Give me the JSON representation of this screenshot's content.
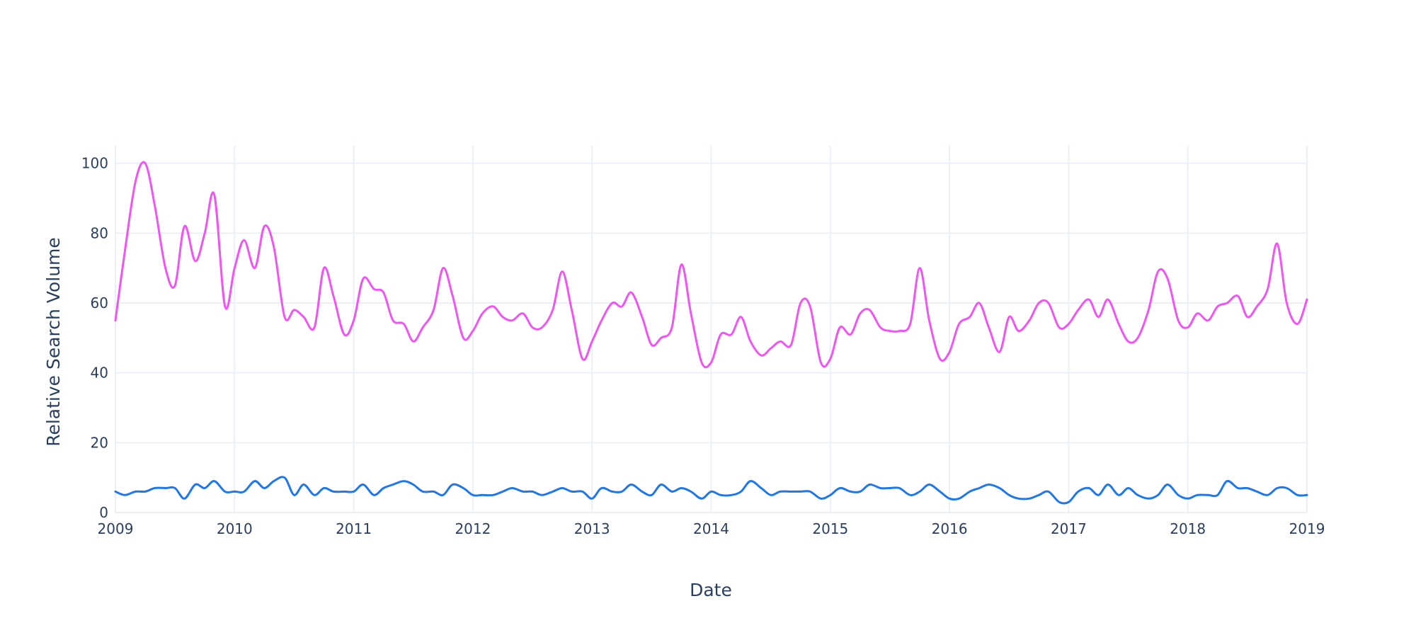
{
  "chart_data": {
    "type": "line",
    "title": "",
    "xlabel": "Date",
    "ylabel": "Relative Search Volume",
    "xlim": [
      2009,
      2019
    ],
    "ylim": [
      0,
      105
    ],
    "x_ticks": [
      "2009",
      "2010",
      "2011",
      "2012",
      "2013",
      "2014",
      "2015",
      "2016",
      "2017",
      "2018",
      "2019"
    ],
    "y_ticks": [
      0,
      20,
      40,
      60,
      80,
      100
    ],
    "grid": true,
    "series": [
      {
        "color": "#ef55f1",
        "x": [
          2009.0,
          2009.08,
          2009.17,
          2009.25,
          2009.33,
          2009.42,
          2009.5,
          2009.58,
          2009.67,
          2009.75,
          2009.83,
          2009.92,
          2010.0,
          2010.08,
          2010.17,
          2010.25,
          2010.33,
          2010.42,
          2010.5,
          2010.58,
          2010.67,
          2010.75,
          2010.83,
          2010.92,
          2011.0,
          2011.08,
          2011.17,
          2011.25,
          2011.33,
          2011.42,
          2011.5,
          2011.58,
          2011.67,
          2011.75,
          2011.83,
          2011.92,
          2012.0,
          2012.08,
          2012.17,
          2012.25,
          2012.33,
          2012.42,
          2012.5,
          2012.58,
          2012.67,
          2012.75,
          2012.83,
          2012.92,
          2013.0,
          2013.08,
          2013.17,
          2013.25,
          2013.33,
          2013.42,
          2013.5,
          2013.58,
          2013.67,
          2013.75,
          2013.83,
          2013.92,
          2014.0,
          2014.08,
          2014.17,
          2014.25,
          2014.33,
          2014.42,
          2014.5,
          2014.58,
          2014.67,
          2014.75,
          2014.83,
          2014.92,
          2015.0,
          2015.08,
          2015.17,
          2015.25,
          2015.33,
          2015.42,
          2015.5,
          2015.58,
          2015.67,
          2015.75,
          2015.83,
          2015.92,
          2016.0,
          2016.08,
          2016.17,
          2016.25,
          2016.33,
          2016.42,
          2016.5,
          2016.58,
          2016.67,
          2016.75,
          2016.83,
          2016.92,
          2017.0,
          2017.08,
          2017.17,
          2017.25,
          2017.33,
          2017.42,
          2017.5,
          2017.58,
          2017.67,
          2017.75,
          2017.83,
          2017.92,
          2018.0,
          2018.08,
          2018.17,
          2018.25,
          2018.33,
          2018.42,
          2018.5,
          2018.58,
          2018.67,
          2018.75,
          2018.83,
          2018.92,
          2019.0
        ],
        "y": [
          55,
          75,
          95,
          100,
          88,
          70,
          65,
          82,
          72,
          80,
          91,
          59,
          70,
          78,
          70,
          82,
          76,
          56,
          58,
          56,
          53,
          70,
          62,
          51,
          55,
          67,
          64,
          63,
          55,
          54,
          49,
          53,
          58,
          70,
          62,
          50,
          52,
          57,
          59,
          56,
          55,
          57,
          53,
          53,
          58,
          69,
          58,
          44,
          49,
          55,
          60,
          59,
          63,
          56,
          48,
          50,
          53,
          71,
          57,
          43,
          43,
          51,
          51,
          56,
          49,
          45,
          47,
          49,
          48,
          60,
          59,
          43,
          44,
          53,
          51,
          57,
          58,
          53,
          52,
          52,
          54,
          70,
          55,
          44,
          46,
          54,
          56,
          60,
          53,
          46,
          56,
          52,
          55,
          60,
          60,
          53,
          54,
          58,
          61,
          56,
          61,
          54,
          49,
          50,
          58,
          69,
          67,
          55,
          53,
          57,
          55,
          59,
          60,
          62,
          56,
          59,
          64,
          77,
          60,
          54,
          61
        ]
      },
      {
        "color": "#1f77e8",
        "x": [
          2009.0,
          2009.08,
          2009.17,
          2009.25,
          2009.33,
          2009.42,
          2009.5,
          2009.58,
          2009.67,
          2009.75,
          2009.83,
          2009.92,
          2010.0,
          2010.08,
          2010.17,
          2010.25,
          2010.33,
          2010.42,
          2010.5,
          2010.58,
          2010.67,
          2010.75,
          2010.83,
          2010.92,
          2011.0,
          2011.08,
          2011.17,
          2011.25,
          2011.33,
          2011.42,
          2011.5,
          2011.58,
          2011.67,
          2011.75,
          2011.83,
          2011.92,
          2012.0,
          2012.08,
          2012.17,
          2012.25,
          2012.33,
          2012.42,
          2012.5,
          2012.58,
          2012.67,
          2012.75,
          2012.83,
          2012.92,
          2013.0,
          2013.08,
          2013.17,
          2013.25,
          2013.33,
          2013.42,
          2013.5,
          2013.58,
          2013.67,
          2013.75,
          2013.83,
          2013.92,
          2014.0,
          2014.08,
          2014.17,
          2014.25,
          2014.33,
          2014.42,
          2014.5,
          2014.58,
          2014.67,
          2014.75,
          2014.83,
          2014.92,
          2015.0,
          2015.08,
          2015.17,
          2015.25,
          2015.33,
          2015.42,
          2015.5,
          2015.58,
          2015.67,
          2015.75,
          2015.83,
          2015.92,
          2016.0,
          2016.08,
          2016.17,
          2016.25,
          2016.33,
          2016.42,
          2016.5,
          2016.58,
          2016.67,
          2016.75,
          2016.83,
          2016.92,
          2017.0,
          2017.08,
          2017.17,
          2017.25,
          2017.33,
          2017.42,
          2017.5,
          2017.58,
          2017.67,
          2017.75,
          2017.83,
          2017.92,
          2018.0,
          2018.08,
          2018.17,
          2018.25,
          2018.33,
          2018.42,
          2018.5,
          2018.58,
          2018.67,
          2018.75,
          2018.83,
          2018.92,
          2019.0
        ],
        "y": [
          6,
          5,
          6,
          6,
          7,
          7,
          7,
          4,
          8,
          7,
          9,
          6,
          6,
          6,
          9,
          7,
          9,
          10,
          5,
          8,
          5,
          7,
          6,
          6,
          6,
          8,
          5,
          7,
          8,
          9,
          8,
          6,
          6,
          5,
          8,
          7,
          5,
          5,
          5,
          6,
          7,
          6,
          6,
          5,
          6,
          7,
          6,
          6,
          4,
          7,
          6,
          6,
          8,
          6,
          5,
          8,
          6,
          7,
          6,
          4,
          6,
          5,
          5,
          6,
          9,
          7,
          5,
          6,
          6,
          6,
          6,
          4,
          5,
          7,
          6,
          6,
          8,
          7,
          7,
          7,
          5,
          6,
          8,
          6,
          4,
          4,
          6,
          7,
          8,
          7,
          5,
          4,
          4,
          5,
          6,
          3,
          3,
          6,
          7,
          5,
          8,
          5,
          7,
          5,
          4,
          5,
          8,
          5,
          4,
          5,
          5,
          5,
          9,
          7,
          7,
          6,
          5,
          7,
          7,
          5,
          5
        ]
      }
    ]
  }
}
